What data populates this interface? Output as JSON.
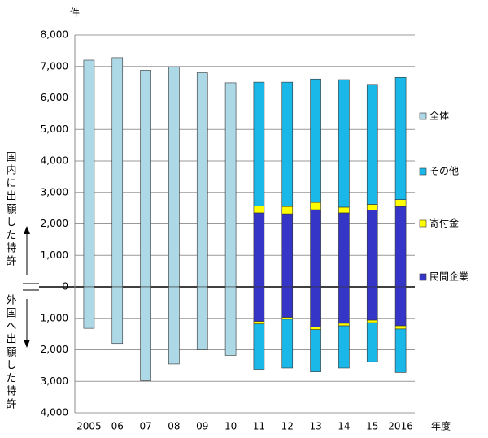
{
  "chart_data": {
    "type": "bar",
    "y_unit": "件",
    "x_label": "年度",
    "side_labels": [
      "国内に出願した特許",
      "外国へ出願した特許"
    ],
    "categories": [
      "2005",
      "06",
      "07",
      "08",
      "09",
      "10",
      "11",
      "12",
      "13",
      "14",
      "15",
      "2016"
    ],
    "series": [
      {
        "name": "全体",
        "color": "#add8e6",
        "values": [
          7200,
          7280,
          6880,
          6980,
          6800,
          6480,
          null,
          null,
          null,
          null,
          null,
          null
        ],
        "foreign": [
          -1320,
          -1800,
          -2980,
          -2450,
          -2000,
          -2180,
          null,
          null,
          null,
          null,
          null,
          null
        ]
      },
      {
        "name": "その他",
        "color": "#1ab8e8",
        "values": [
          null,
          null,
          null,
          null,
          null,
          null,
          3930,
          3950,
          3920,
          4050,
          3810,
          3880
        ],
        "foreign": [
          null,
          null,
          null,
          null,
          null,
          null,
          -1440,
          -1550,
          -1340,
          -1340,
          -1240,
          -1380
        ]
      },
      {
        "name": "寄付金",
        "color": "#ffff00",
        "values": [
          null,
          null,
          null,
          null,
          null,
          null,
          220,
          230,
          230,
          180,
          180,
          220
        ],
        "foreign": [
          null,
          null,
          null,
          null,
          null,
          null,
          -80,
          -60,
          -80,
          -80,
          -80,
          -100
        ]
      },
      {
        "name": "民間企業",
        "color": "#3535c8",
        "values": [
          null,
          null,
          null,
          null,
          null,
          null,
          2350,
          2320,
          2450,
          2350,
          2440,
          2550
        ],
        "foreign": [
          null,
          null,
          null,
          null,
          null,
          null,
          -1100,
          -970,
          -1280,
          -1160,
          -1060,
          -1240
        ]
      }
    ],
    "ylim": [
      -4000,
      8000
    ],
    "yticks": [
      {
        "value": 8000,
        "label": "8,000"
      },
      {
        "value": 7000,
        "label": "7,000"
      },
      {
        "value": 6000,
        "label": "6,000"
      },
      {
        "value": 5000,
        "label": "5,000"
      },
      {
        "value": 4000,
        "label": "4,000"
      },
      {
        "value": 3000,
        "label": "3,000"
      },
      {
        "value": 2000,
        "label": "2,000"
      },
      {
        "value": 1000,
        "label": "1,000"
      },
      0,
      {
        "value": -1000,
        "label": "1,000"
      },
      {
        "value": -2000,
        "label": "2,000"
      },
      {
        "value": -3000,
        "label": "3,000"
      },
      {
        "value": -4000,
        "label": "4,000"
      }
    ],
    "grid": true
  }
}
